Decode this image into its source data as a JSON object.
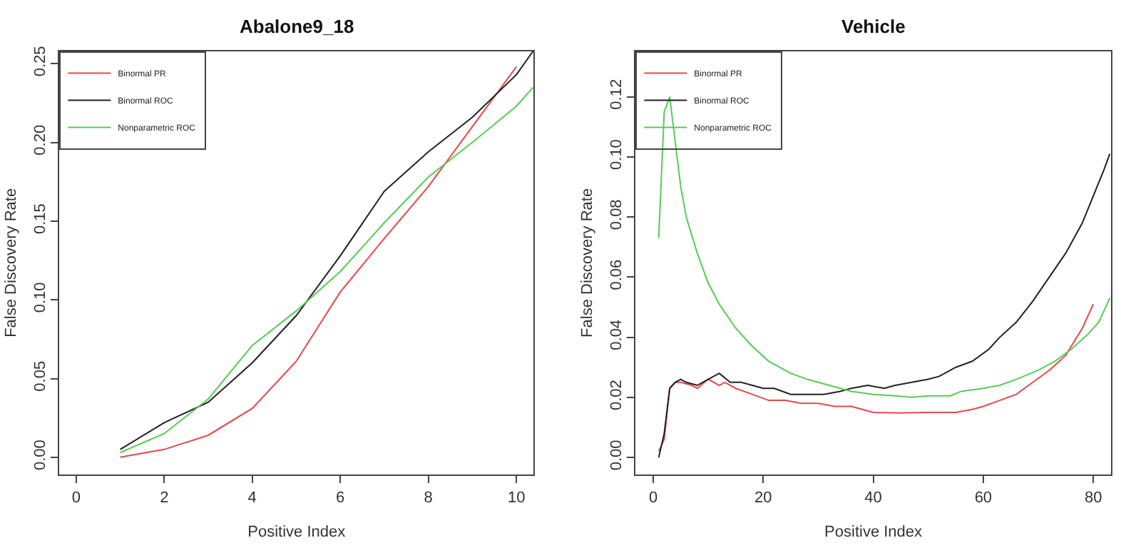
{
  "chart_data": [
    {
      "type": "line",
      "title": "Abalone9_18",
      "xlabel": "Positive Index",
      "ylabel": "False Discovery Rate",
      "legend": "top left",
      "xlim": [
        -0.38,
        10.39
      ],
      "ylim": [
        -0.011,
        0.258
      ],
      "xticks": [
        0,
        2,
        4,
        6,
        8,
        10
      ],
      "yticks": [
        {
          "value": 0,
          "label": "0.00"
        },
        {
          "value": 0.05,
          "label": "0.05"
        },
        {
          "value": 0.1,
          "label": "0.10"
        },
        {
          "value": 0.15,
          "label": "0.15"
        },
        {
          "value": 0.2,
          "label": "0.20"
        },
        {
          "value": 0.25,
          "label": "0.25"
        }
      ],
      "series": [
        {
          "name": "Binormal PR",
          "color": "#e8474a",
          "x": [
            1,
            2,
            3,
            4,
            5,
            6,
            7,
            8,
            9,
            10
          ],
          "values": [
            0.0,
            0.005,
            0.014,
            0.031,
            0.061,
            0.105,
            0.139,
            0.172,
            0.21,
            0.248
          ]
        },
        {
          "name": "Binormal ROC",
          "color": "#222222",
          "x": [
            1,
            2,
            3,
            4,
            5,
            6,
            7,
            8,
            9,
            10,
            10.38
          ],
          "values": [
            0.005,
            0.022,
            0.035,
            0.06,
            0.09,
            0.128,
            0.169,
            0.194,
            0.216,
            0.243,
            0.258
          ]
        },
        {
          "name": "Nonparametric ROC",
          "color": "#55cc55",
          "x": [
            1,
            2,
            3,
            4,
            5,
            6,
            7,
            8,
            9,
            10,
            10.38
          ],
          "values": [
            0.003,
            0.015,
            0.037,
            0.071,
            0.093,
            0.118,
            0.149,
            0.178,
            0.2,
            0.223,
            0.235
          ]
        }
      ]
    },
    {
      "type": "line",
      "title": "Vehicle",
      "xlabel": "Positive Index",
      "ylabel": "False Discovery Rate",
      "legend": "top left",
      "xlim": [
        -3.2,
        83.2
      ],
      "ylim": [
        -0.0057,
        0.1352
      ],
      "xticks": [
        0,
        20,
        40,
        60,
        80
      ],
      "yticks": [
        {
          "value": 0,
          "label": "0.00"
        },
        {
          "value": 0.02,
          "label": "0.02"
        },
        {
          "value": 0.04,
          "label": "0.04"
        },
        {
          "value": 0.06,
          "label": "0.06"
        },
        {
          "value": 0.08,
          "label": "0.08"
        },
        {
          "value": 0.1,
          "label": "0.10"
        },
        {
          "value": 0.12,
          "label": "0.12"
        }
      ],
      "series": [
        {
          "name": "Binormal PR",
          "color": "#e8474a",
          "x": [
            1,
            2,
            3,
            4,
            5,
            7,
            8,
            10,
            12,
            13,
            15,
            18,
            21,
            24,
            27,
            30,
            33,
            36,
            40,
            45,
            50,
            55,
            58,
            60,
            63,
            66,
            69,
            72,
            75,
            78,
            80
          ],
          "values": [
            0.002,
            0.006,
            0.023,
            0.025,
            0.025,
            0.024,
            0.023,
            0.026,
            0.024,
            0.025,
            0.023,
            0.021,
            0.019,
            0.019,
            0.018,
            0.018,
            0.017,
            0.017,
            0.015,
            0.0148,
            0.015,
            0.015,
            0.016,
            0.017,
            0.019,
            0.021,
            0.025,
            0.029,
            0.034,
            0.043,
            0.051
          ]
        },
        {
          "name": "Binormal ROC",
          "color": "#222222",
          "x": [
            1,
            2,
            3,
            4,
            5,
            6,
            8,
            10,
            12,
            14,
            16,
            20,
            22,
            25,
            28,
            31,
            34,
            36,
            39,
            42,
            44,
            47,
            50,
            52,
            55,
            58,
            61,
            63,
            66,
            69,
            72,
            75,
            78,
            80,
            82,
            83
          ],
          "values": [
            0.0,
            0.008,
            0.023,
            0.025,
            0.026,
            0.025,
            0.024,
            0.026,
            0.028,
            0.025,
            0.025,
            0.023,
            0.023,
            0.021,
            0.021,
            0.021,
            0.022,
            0.023,
            0.024,
            0.023,
            0.024,
            0.025,
            0.026,
            0.027,
            0.03,
            0.032,
            0.036,
            0.04,
            0.045,
            0.052,
            0.06,
            0.068,
            0.078,
            0.087,
            0.096,
            0.101
          ]
        },
        {
          "name": "Nonparametric ROC",
          "color": "#55cc55",
          "x": [
            1,
            2,
            3,
            4,
            5,
            6,
            8,
            10,
            12,
            15,
            18,
            21,
            25,
            28,
            32,
            36,
            40,
            44,
            47,
            50,
            54,
            56,
            60,
            63,
            66,
            70,
            73,
            76,
            79,
            81,
            83
          ],
          "values": [
            0.073,
            0.115,
            0.12,
            0.105,
            0.09,
            0.08,
            0.068,
            0.058,
            0.051,
            0.043,
            0.037,
            0.032,
            0.028,
            0.026,
            0.024,
            0.022,
            0.021,
            0.0205,
            0.02,
            0.0205,
            0.0205,
            0.022,
            0.023,
            0.024,
            0.026,
            0.029,
            0.032,
            0.036,
            0.041,
            0.045,
            0.053
          ]
        }
      ]
    }
  ]
}
